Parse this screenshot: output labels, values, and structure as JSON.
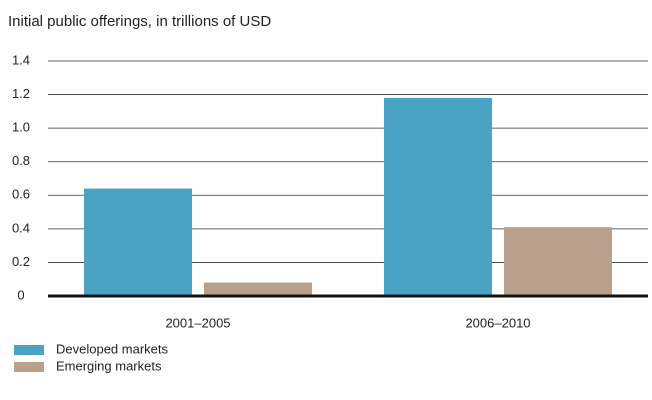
{
  "chart_data": {
    "type": "bar",
    "title": "Initial public offerings, in trillions of USD",
    "categories": [
      "2001–2005",
      "2006–2010"
    ],
    "series": [
      {
        "name": "Developed markets",
        "color": "#4ba3c3",
        "values": [
          0.64,
          1.18
        ]
      },
      {
        "name": "Emerging markets",
        "color": "#b9a08d",
        "values": [
          0.08,
          0.41
        ]
      }
    ],
    "ylim": [
      0,
      1.4
    ],
    "yticks": [
      0,
      0.2,
      0.4,
      0.6,
      0.8,
      {
        "value": 1,
        "label": "1.0"
      },
      1.2,
      1.4
    ],
    "grid": true
  }
}
